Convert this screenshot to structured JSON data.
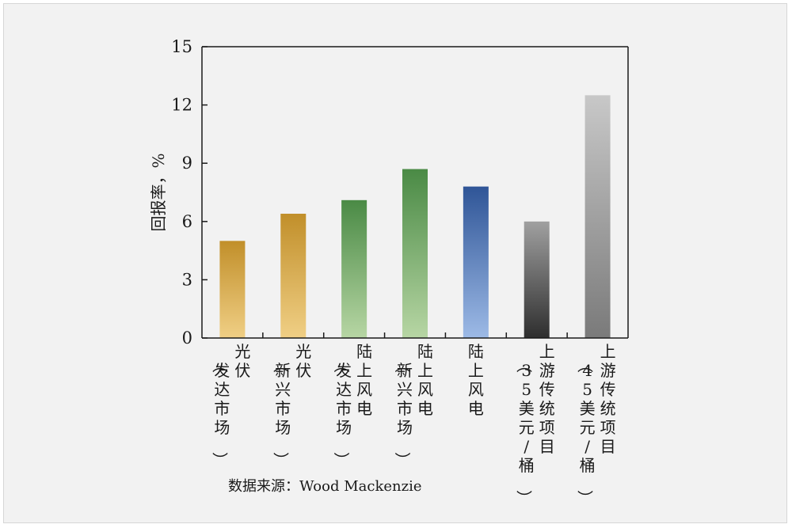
{
  "chart_data": {
    "type": "bar",
    "categories": [
      [
        "光伏",
        "（发达市场）"
      ],
      [
        "光伏",
        "（新兴市场）"
      ],
      [
        "陆上风电",
        "（发达市场）"
      ],
      [
        "陆上风电",
        "（新兴市场）"
      ],
      [
        "陆上风电"
      ],
      [
        "上游传统项目",
        "（35美元/桶）"
      ],
      [
        "上游传统项目",
        "（45美元/桶）"
      ]
    ],
    "values": [
      5.0,
      6.4,
      7.1,
      8.7,
      7.8,
      6.0,
      12.5
    ],
    "ylabel": "回报率，%",
    "ylim": [
      0,
      15
    ],
    "yticks": [
      0,
      3,
      6,
      9,
      12,
      15
    ],
    "grid": false,
    "colors": [
      [
        "#f0cf85",
        "#c18f2a"
      ],
      [
        "#f0cf85",
        "#c18f2a"
      ],
      [
        "#b7d6a4",
        "#4a8a45"
      ],
      [
        "#b7d6a4",
        "#4a8a45"
      ],
      [
        "#9dbae6",
        "#2f5597"
      ],
      [
        "#2e2e2e",
        "#a0a0a0"
      ],
      [
        "#7a7a7a",
        "#c8c8c8"
      ]
    ],
    "source": "数据来源：Wood Mackenzie"
  }
}
